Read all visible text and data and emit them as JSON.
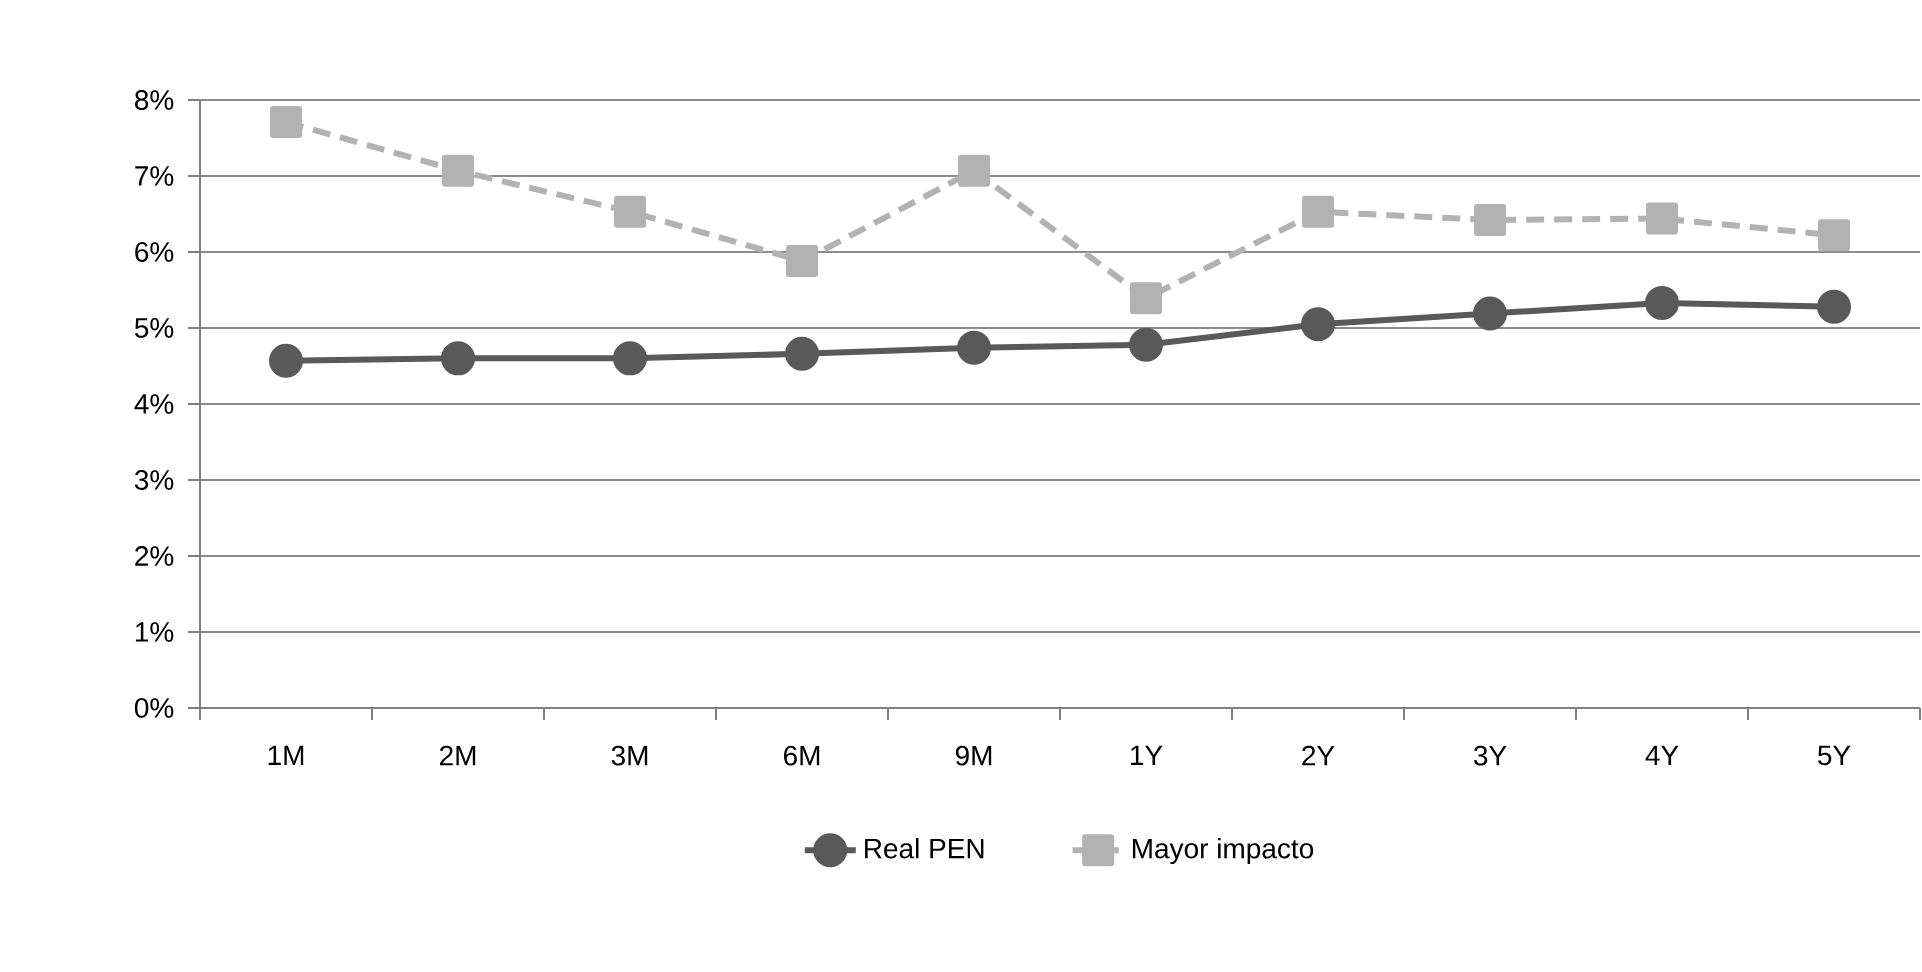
{
  "chart_data": {
    "type": "line",
    "categories": [
      "1M",
      "2M",
      "3M",
      "6M",
      "9M",
      "1Y",
      "2Y",
      "3Y",
      "4Y",
      "5Y"
    ],
    "series": [
      {
        "name": "Real PEN",
        "color": "#595959",
        "marker": "circle",
        "line_style": "solid",
        "values": [
          4.57,
          4.6,
          4.6,
          4.66,
          4.74,
          4.78,
          5.05,
          5.19,
          5.33,
          5.28
        ]
      },
      {
        "name": "Mayor impacto",
        "color": "#b2b2b2",
        "marker": "square",
        "line_style": "dashed",
        "values": [
          7.71,
          7.07,
          6.53,
          5.88,
          7.07,
          5.39,
          6.53,
          6.42,
          6.44,
          6.22
        ]
      }
    ],
    "ylim": [
      0,
      8
    ],
    "yticks": [
      {
        "value": 0,
        "label": "0%"
      },
      {
        "value": 1,
        "label": "1%"
      },
      {
        "value": 2,
        "label": "2%"
      },
      {
        "value": 3,
        "label": "3%"
      },
      {
        "value": 4,
        "label": "4%"
      },
      {
        "value": 5,
        "label": "5%"
      },
      {
        "value": 6,
        "label": "6%"
      },
      {
        "value": 7,
        "label": "7%"
      },
      {
        "value": 8,
        "label": "8%"
      }
    ],
    "grid": "y",
    "legend": "bottom"
  }
}
